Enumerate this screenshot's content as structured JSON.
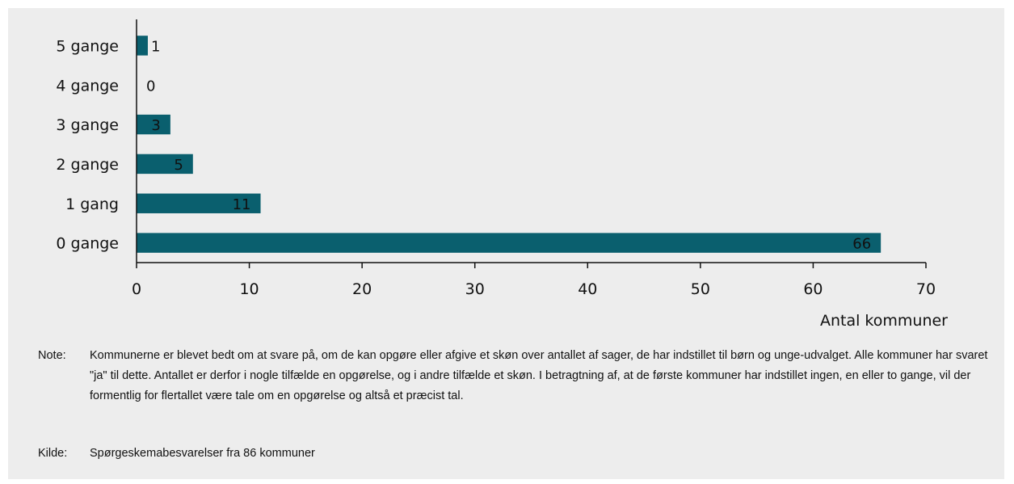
{
  "chart_data": {
    "type": "bar",
    "orientation": "horizontal",
    "categories": [
      "5 gange",
      "4 gange",
      "3 gange",
      "2 gange",
      "1 gang",
      "0 gange"
    ],
    "values": [
      1,
      0,
      3,
      5,
      11,
      66
    ],
    "data_labels": [
      "1",
      "0",
      "3",
      "5",
      "11",
      "66"
    ],
    "xlabel": "Antal kommuner",
    "xlim": [
      0,
      70
    ],
    "xticks": [
      0,
      10,
      20,
      30,
      40,
      50,
      60,
      70
    ],
    "bar_color": "#0a5f6e",
    "grid": false
  },
  "note": {
    "label": "Note:",
    "text": "Kommunerne er blevet bedt om at svare på, om de kan opgøre eller afgive et skøn over antallet af sager, de har indstillet til børn og unge-udvalget. Alle kommuner har svaret \"ja\" til dette. Antallet er derfor i nogle tilfælde en opgørelse, og i andre tilfælde et skøn. I betragtning af, at de første kommuner har indstillet ingen, en eller to gange, vil der formentlig for flertallet være tale om en opgørelse og altså et præcist tal."
  },
  "source": {
    "label": "Kilde:",
    "text": "Spørgeskemabesvarelser fra 86 kommuner"
  }
}
